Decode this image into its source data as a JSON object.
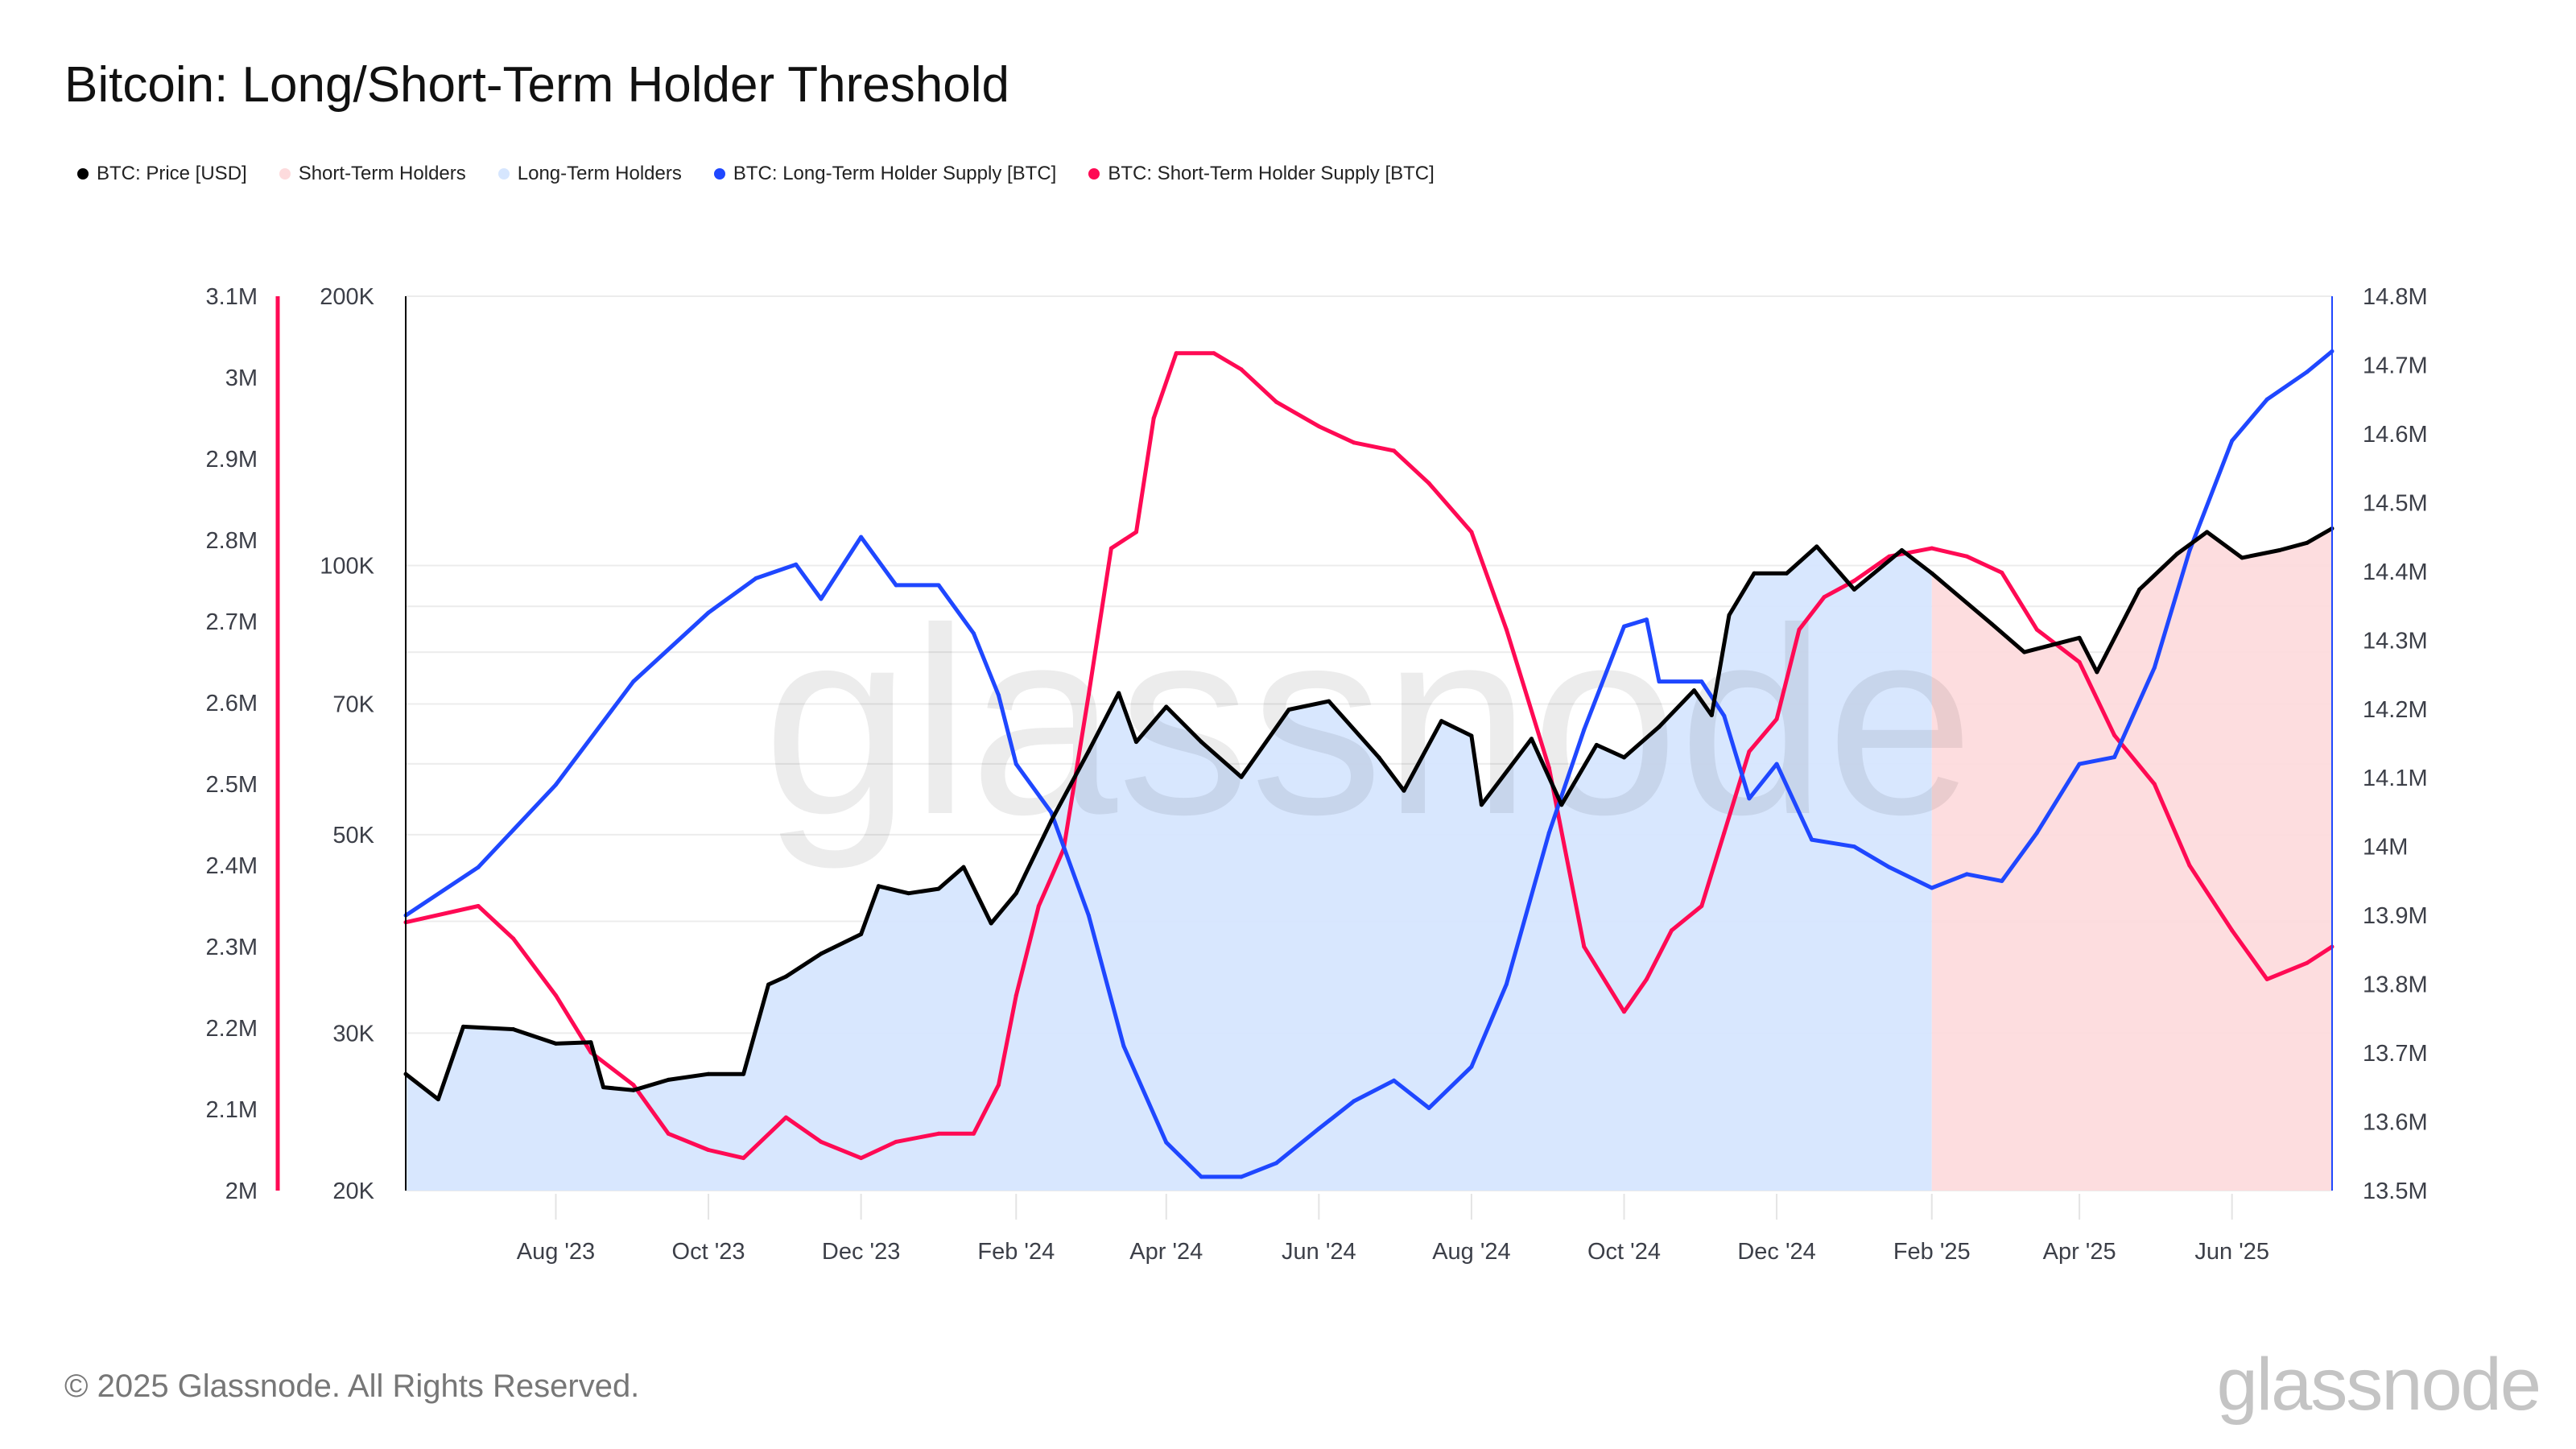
{
  "header": {
    "title": "Bitcoin: Long/Short-Term Holder Threshold"
  },
  "footer": {
    "copyright": "© 2025 Glassnode. All Rights Reserved.",
    "logo": "glassnode"
  },
  "watermark": "glassnode",
  "legend": [
    {
      "label": "BTC: Price [USD]",
      "color": "#000000"
    },
    {
      "label": "Short-Term Holders",
      "color": "#fddbdd"
    },
    {
      "label": "Long-Term Holders",
      "color": "#d6e6fe"
    },
    {
      "label": "BTC: Long-Term Holder Supply [BTC]",
      "color": "#1f47ff"
    },
    {
      "label": "BTC: Short-Term Holder Supply [BTC]",
      "color": "#ff0a54"
    }
  ],
  "chart_data": {
    "type": "line",
    "title": "Bitcoin: Long/Short-Term Holder Threshold",
    "xlim": [
      "2023-06-02",
      "2025-07-11"
    ],
    "x_ticks": [
      {
        "label": "Aug '23",
        "date": "2023-08-01"
      },
      {
        "label": "Oct '23",
        "date": "2023-10-01"
      },
      {
        "label": "Dec '23",
        "date": "2023-12-01"
      },
      {
        "label": "Feb '24",
        "date": "2024-02-01"
      },
      {
        "label": "Apr '24",
        "date": "2024-04-01"
      },
      {
        "label": "Jun '24",
        "date": "2024-06-01"
      },
      {
        "label": "Aug '24",
        "date": "2024-08-01"
      },
      {
        "label": "Oct '24",
        "date": "2024-10-01"
      },
      {
        "label": "Dec '24",
        "date": "2024-12-01"
      },
      {
        "label": "Feb '25",
        "date": "2025-02-01"
      },
      {
        "label": "Apr '25",
        "date": "2025-04-01"
      },
      {
        "label": "Jun '25",
        "date": "2025-06-01"
      }
    ],
    "axes": {
      "price": {
        "scale": "log",
        "range": [
          20000,
          200000
        ],
        "ticks": [
          {
            "v": 20000,
            "label": "20K"
          },
          {
            "v": 30000,
            "label": "30K"
          },
          {
            "v": 50000,
            "label": "50K"
          },
          {
            "v": 70000,
            "label": "70K"
          },
          {
            "v": 100000,
            "label": "100K"
          },
          {
            "v": 200000,
            "label": "200K"
          }
        ],
        "grid": [
          20000,
          30000,
          40000,
          50000,
          60000,
          70000,
          80000,
          90000,
          100000,
          200000
        ]
      },
      "sth_supply": {
        "scale": "linear",
        "range": [
          2000000,
          3100000
        ],
        "color": "#ff0a54",
        "ticks": [
          {
            "v": 2000000,
            "label": "2M"
          },
          {
            "v": 2100000,
            "label": "2.1M"
          },
          {
            "v": 2200000,
            "label": "2.2M"
          },
          {
            "v": 2300000,
            "label": "2.3M"
          },
          {
            "v": 2400000,
            "label": "2.4M"
          },
          {
            "v": 2500000,
            "label": "2.5M"
          },
          {
            "v": 2600000,
            "label": "2.6M"
          },
          {
            "v": 2700000,
            "label": "2.7M"
          },
          {
            "v": 2800000,
            "label": "2.8M"
          },
          {
            "v": 2900000,
            "label": "2.9M"
          },
          {
            "v": 3000000,
            "label": "3M"
          },
          {
            "v": 3100000,
            "label": "3.1M"
          }
        ]
      },
      "lth_supply": {
        "scale": "linear",
        "range": [
          13500000,
          14800000
        ],
        "color": "#1f47ff",
        "ticks": [
          {
            "v": 13500000,
            "label": "13.5M"
          },
          {
            "v": 13600000,
            "label": "13.6M"
          },
          {
            "v": 13700000,
            "label": "13.7M"
          },
          {
            "v": 13800000,
            "label": "13.8M"
          },
          {
            "v": 13900000,
            "label": "13.9M"
          },
          {
            "v": 14000000,
            "label": "14M"
          },
          {
            "v": 14100000,
            "label": "14.1M"
          },
          {
            "v": 14200000,
            "label": "14.2M"
          },
          {
            "v": 14300000,
            "label": "14.3M"
          },
          {
            "v": 14400000,
            "label": "14.4M"
          },
          {
            "v": 14500000,
            "label": "14.5M"
          },
          {
            "v": 14600000,
            "label": "14.6M"
          },
          {
            "v": 14700000,
            "label": "14.7M"
          },
          {
            "v": 14800000,
            "label": "14.8M"
          }
        ]
      }
    },
    "regions": [
      {
        "name": "Long-Term Holders",
        "from": "2023-06-02",
        "to": "2025-02-01",
        "color": "#d6e6fe"
      },
      {
        "name": "Short-Term Holders",
        "from": "2025-02-01",
        "to": "2025-07-11",
        "color": "#fddbdd"
      }
    ],
    "grid": true,
    "legend_position": "top-left",
    "series": [
      {
        "name": "BTC: Price [USD]",
        "axis": "price",
        "color": "#000000",
        "points": [
          [
            "2023-06-02",
            27000
          ],
          [
            "2023-06-15",
            25300
          ],
          [
            "2023-06-25",
            30500
          ],
          [
            "2023-07-05",
            30400
          ],
          [
            "2023-07-15",
            30300
          ],
          [
            "2023-08-01",
            29200
          ],
          [
            "2023-08-15",
            29300
          ],
          [
            "2023-08-20",
            26100
          ],
          [
            "2023-09-01",
            25900
          ],
          [
            "2023-09-15",
            26600
          ],
          [
            "2023-10-01",
            27000
          ],
          [
            "2023-10-15",
            27000
          ],
          [
            "2023-10-25",
            34000
          ],
          [
            "2023-11-01",
            34700
          ],
          [
            "2023-11-15",
            36800
          ],
          [
            "2023-12-01",
            38700
          ],
          [
            "2023-12-08",
            43800
          ],
          [
            "2023-12-20",
            43000
          ],
          [
            "2024-01-01",
            43500
          ],
          [
            "2024-01-11",
            46000
          ],
          [
            "2024-01-22",
            39800
          ],
          [
            "2024-02-01",
            43000
          ],
          [
            "2024-02-15",
            51800
          ],
          [
            "2024-03-01",
            62000
          ],
          [
            "2024-03-13",
            72000
          ],
          [
            "2024-03-20",
            63500
          ],
          [
            "2024-04-01",
            69500
          ],
          [
            "2024-04-15",
            63500
          ],
          [
            "2024-05-01",
            58000
          ],
          [
            "2024-05-20",
            69000
          ],
          [
            "2024-06-05",
            70500
          ],
          [
            "2024-06-25",
            61000
          ],
          [
            "2024-07-05",
            56000
          ],
          [
            "2024-07-20",
            67000
          ],
          [
            "2024-08-01",
            64500
          ],
          [
            "2024-08-05",
            54000
          ],
          [
            "2024-08-25",
            64000
          ],
          [
            "2024-09-06",
            54000
          ],
          [
            "2024-09-20",
            63000
          ],
          [
            "2024-10-01",
            61000
          ],
          [
            "2024-10-15",
            66000
          ],
          [
            "2024-10-29",
            72500
          ],
          [
            "2024-11-05",
            68000
          ],
          [
            "2024-11-12",
            88000
          ],
          [
            "2024-11-22",
            98000
          ],
          [
            "2024-12-05",
            98000
          ],
          [
            "2024-12-17",
            105000
          ],
          [
            "2025-01-01",
            94000
          ],
          [
            "2025-01-20",
            104000
          ],
          [
            "2025-02-01",
            98000
          ],
          [
            "2025-02-25",
            86000
          ],
          [
            "2025-03-10",
            80000
          ],
          [
            "2025-04-01",
            83000
          ],
          [
            "2025-04-08",
            76000
          ],
          [
            "2025-04-25",
            94000
          ],
          [
            "2025-05-10",
            103000
          ],
          [
            "2025-05-22",
            109000
          ],
          [
            "2025-06-05",
            102000
          ],
          [
            "2025-06-20",
            104000
          ],
          [
            "2025-07-01",
            106000
          ],
          [
            "2025-07-11",
            110000
          ]
        ]
      },
      {
        "name": "BTC: Long-Term Holder Supply [BTC]",
        "axis": "lth_supply",
        "color": "#1f47ff",
        "points": [
          [
            "2023-06-02",
            13900000
          ],
          [
            "2023-07-01",
            13970000
          ],
          [
            "2023-08-01",
            14090000
          ],
          [
            "2023-09-01",
            14240000
          ],
          [
            "2023-10-01",
            14340000
          ],
          [
            "2023-10-20",
            14390000
          ],
          [
            "2023-11-05",
            14410000
          ],
          [
            "2023-11-15",
            14360000
          ],
          [
            "2023-12-01",
            14450000
          ],
          [
            "2023-12-15",
            14380000
          ],
          [
            "2024-01-01",
            14380000
          ],
          [
            "2024-01-15",
            14310000
          ],
          [
            "2024-01-25",
            14220000
          ],
          [
            "2024-02-01",
            14120000
          ],
          [
            "2024-02-15",
            14050000
          ],
          [
            "2024-03-01",
            13900000
          ],
          [
            "2024-03-15",
            13710000
          ],
          [
            "2024-04-01",
            13570000
          ],
          [
            "2024-04-15",
            13520000
          ],
          [
            "2024-05-01",
            13520000
          ],
          [
            "2024-05-15",
            13540000
          ],
          [
            "2024-06-01",
            13590000
          ],
          [
            "2024-06-15",
            13630000
          ],
          [
            "2024-07-01",
            13660000
          ],
          [
            "2024-07-15",
            13620000
          ],
          [
            "2024-08-01",
            13680000
          ],
          [
            "2024-08-15",
            13800000
          ],
          [
            "2024-09-01",
            14020000
          ],
          [
            "2024-09-15",
            14170000
          ],
          [
            "2024-10-01",
            14320000
          ],
          [
            "2024-10-10",
            14330000
          ],
          [
            "2024-10-15",
            14240000
          ],
          [
            "2024-11-01",
            14240000
          ],
          [
            "2024-11-10",
            14190000
          ],
          [
            "2024-11-20",
            14070000
          ],
          [
            "2024-12-01",
            14120000
          ],
          [
            "2024-12-15",
            14010000
          ],
          [
            "2025-01-01",
            14000000
          ],
          [
            "2025-01-15",
            13970000
          ],
          [
            "2025-02-01",
            13940000
          ],
          [
            "2025-02-15",
            13960000
          ],
          [
            "2025-03-01",
            13950000
          ],
          [
            "2025-03-15",
            14020000
          ],
          [
            "2025-04-01",
            14120000
          ],
          [
            "2025-04-15",
            14130000
          ],
          [
            "2025-05-01",
            14260000
          ],
          [
            "2025-05-15",
            14430000
          ],
          [
            "2025-06-01",
            14590000
          ],
          [
            "2025-06-15",
            14650000
          ],
          [
            "2025-07-01",
            14690000
          ],
          [
            "2025-07-11",
            14720000
          ]
        ]
      },
      {
        "name": "BTC: Short-Term Holder Supply [BTC]",
        "axis": "sth_supply",
        "color": "#ff0a54",
        "points": [
          [
            "2023-06-02",
            2330000
          ],
          [
            "2023-07-01",
            2350000
          ],
          [
            "2023-07-15",
            2310000
          ],
          [
            "2023-08-01",
            2240000
          ],
          [
            "2023-08-15",
            2170000
          ],
          [
            "2023-09-01",
            2130000
          ],
          [
            "2023-09-15",
            2070000
          ],
          [
            "2023-10-01",
            2050000
          ],
          [
            "2023-10-15",
            2040000
          ],
          [
            "2023-11-01",
            2090000
          ],
          [
            "2023-11-15",
            2060000
          ],
          [
            "2023-12-01",
            2040000
          ],
          [
            "2023-12-15",
            2060000
          ],
          [
            "2024-01-01",
            2070000
          ],
          [
            "2024-01-15",
            2070000
          ],
          [
            "2024-01-25",
            2130000
          ],
          [
            "2024-02-01",
            2240000
          ],
          [
            "2024-02-10",
            2350000
          ],
          [
            "2024-02-20",
            2420000
          ],
          [
            "2024-03-01",
            2610000
          ],
          [
            "2024-03-10",
            2790000
          ],
          [
            "2024-03-20",
            2810000
          ],
          [
            "2024-03-27",
            2950000
          ],
          [
            "2024-04-05",
            3030000
          ],
          [
            "2024-04-20",
            3030000
          ],
          [
            "2024-05-01",
            3010000
          ],
          [
            "2024-05-15",
            2970000
          ],
          [
            "2024-06-01",
            2940000
          ],
          [
            "2024-06-15",
            2920000
          ],
          [
            "2024-07-01",
            2910000
          ],
          [
            "2024-07-15",
            2870000
          ],
          [
            "2024-08-01",
            2810000
          ],
          [
            "2024-08-15",
            2690000
          ],
          [
            "2024-09-01",
            2520000
          ],
          [
            "2024-09-15",
            2300000
          ],
          [
            "2024-10-01",
            2220000
          ],
          [
            "2024-10-10",
            2260000
          ],
          [
            "2024-10-20",
            2320000
          ],
          [
            "2024-11-01",
            2350000
          ],
          [
            "2024-11-10",
            2440000
          ],
          [
            "2024-11-20",
            2540000
          ],
          [
            "2024-12-01",
            2580000
          ],
          [
            "2024-12-10",
            2690000
          ],
          [
            "2024-12-20",
            2730000
          ],
          [
            "2025-01-01",
            2750000
          ],
          [
            "2025-01-15",
            2780000
          ],
          [
            "2025-02-01",
            2790000
          ],
          [
            "2025-02-15",
            2780000
          ],
          [
            "2025-03-01",
            2760000
          ],
          [
            "2025-03-15",
            2690000
          ],
          [
            "2025-04-01",
            2650000
          ],
          [
            "2025-04-15",
            2560000
          ],
          [
            "2025-05-01",
            2500000
          ],
          [
            "2025-05-15",
            2400000
          ],
          [
            "2025-06-01",
            2320000
          ],
          [
            "2025-06-15",
            2260000
          ],
          [
            "2025-07-01",
            2280000
          ],
          [
            "2025-07-11",
            2300000
          ]
        ]
      }
    ]
  }
}
